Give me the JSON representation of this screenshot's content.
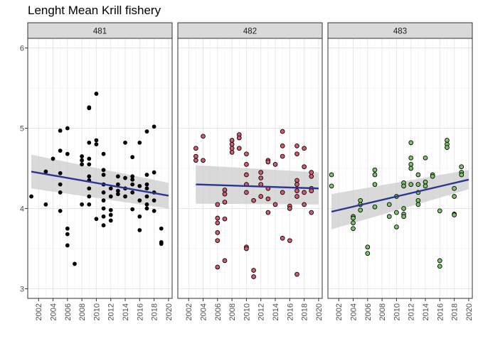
{
  "chart_data": {
    "type": "scatter",
    "title": "Lenght Mean Krill fishery",
    "xlabel": "",
    "ylabel": "",
    "xlim": [
      2000.5,
      2020.5
    ],
    "ylim": [
      2.88,
      6.12
    ],
    "x_ticks": [
      2002,
      2004,
      2006,
      2008,
      2010,
      2012,
      2014,
      2016,
      2018,
      2020
    ],
    "y_ticks": [
      3,
      4,
      5,
      6
    ],
    "grid": true,
    "smooth_color": "#283593",
    "ribbon_color": "#cccccc",
    "panels": [
      {
        "label": "481",
        "point_color": "#000000",
        "trend": {
          "x": [
            2001,
            2020
          ],
          "y": [
            4.46,
            4.16
          ],
          "band_halfwidth": [
            0.21,
            0.16
          ]
        },
        "points": [
          [
            2001,
            4.15
          ],
          [
            2003,
            4.46
          ],
          [
            2003,
            4.05
          ],
          [
            2004,
            4.62
          ],
          [
            2005,
            4.97
          ],
          [
            2005,
            4.72
          ],
          [
            2005,
            4.44
          ],
          [
            2005,
            4.3
          ],
          [
            2005,
            4.2
          ],
          [
            2005,
            3.97
          ],
          [
            2006,
            5.0
          ],
          [
            2006,
            4.68
          ],
          [
            2006,
            3.75
          ],
          [
            2006,
            3.68
          ],
          [
            2006,
            3.54
          ],
          [
            2007,
            3.31
          ],
          [
            2008,
            4.65
          ],
          [
            2008,
            4.6
          ],
          [
            2008,
            4.55
          ],
          [
            2008,
            4.05
          ],
          [
            2009,
            5.26
          ],
          [
            2009,
            5.25
          ],
          [
            2009,
            4.82
          ],
          [
            2009,
            4.62
          ],
          [
            2009,
            4.55
          ],
          [
            2009,
            4.4
          ],
          [
            2009,
            4.35
          ],
          [
            2009,
            4.25
          ],
          [
            2009,
            4.15
          ],
          [
            2009,
            4.05
          ],
          [
            2010,
            5.43
          ],
          [
            2010,
            4.85
          ],
          [
            2010,
            4.8
          ],
          [
            2010,
            3.87
          ],
          [
            2011,
            4.68
          ],
          [
            2011,
            4.48
          ],
          [
            2011,
            4.42
          ],
          [
            2011,
            4.3
          ],
          [
            2011,
            4.2
          ],
          [
            2011,
            4.1
          ],
          [
            2011,
            4.0
          ],
          [
            2011,
            3.9
          ],
          [
            2011,
            3.79
          ],
          [
            2012,
            4.25
          ],
          [
            2012,
            4.15
          ],
          [
            2012,
            3.98
          ],
          [
            2012,
            3.92
          ],
          [
            2012,
            3.85
          ],
          [
            2013,
            4.4
          ],
          [
            2013,
            4.3
          ],
          [
            2013,
            4.22
          ],
          [
            2013,
            4.18
          ],
          [
            2014,
            4.82
          ],
          [
            2014,
            4.38
          ],
          [
            2014,
            4.25
          ],
          [
            2014,
            4.15
          ],
          [
            2015,
            4.4
          ],
          [
            2015,
            4.36
          ],
          [
            2015,
            4.3
          ],
          [
            2015,
            4.2
          ],
          [
            2015,
            3.99
          ],
          [
            2015,
            4.64
          ],
          [
            2016,
            4.82
          ],
          [
            2016,
            4.28
          ],
          [
            2016,
            4.1
          ],
          [
            2016,
            3.9
          ],
          [
            2016,
            3.73
          ],
          [
            2017,
            4.96
          ],
          [
            2017,
            4.42
          ],
          [
            2017,
            4.3
          ],
          [
            2017,
            4.25
          ],
          [
            2017,
            4.15
          ],
          [
            2017,
            4.05
          ],
          [
            2017,
            4.0
          ],
          [
            2018,
            5.02
          ],
          [
            2018,
            4.45
          ],
          [
            2018,
            4.2
          ],
          [
            2018,
            4.1
          ],
          [
            2018,
            3.97
          ],
          [
            2019,
            3.75
          ],
          [
            2019,
            3.58
          ],
          [
            2019,
            3.56
          ]
        ]
      },
      {
        "label": "482",
        "point_color": "#d45a6e",
        "trend": {
          "x": [
            2003,
            2020
          ],
          "y": [
            4.3,
            4.25
          ],
          "band_halfwidth": [
            0.24,
            0.2
          ]
        },
        "points": [
          [
            2003,
            4.75
          ],
          [
            2003,
            4.65
          ],
          [
            2003,
            4.6
          ],
          [
            2004,
            4.9
          ],
          [
            2004,
            4.6
          ],
          [
            2006,
            4.05
          ],
          [
            2006,
            3.88
          ],
          [
            2006,
            3.82
          ],
          [
            2006,
            3.7
          ],
          [
            2006,
            3.6
          ],
          [
            2006,
            3.27
          ],
          [
            2007,
            4.23
          ],
          [
            2007,
            4.18
          ],
          [
            2007,
            4.08
          ],
          [
            2007,
            3.87
          ],
          [
            2007,
            3.35
          ],
          [
            2008,
            4.85
          ],
          [
            2008,
            4.8
          ],
          [
            2008,
            4.75
          ],
          [
            2008,
            4.7
          ],
          [
            2009,
            4.92
          ],
          [
            2009,
            4.88
          ],
          [
            2009,
            4.75
          ],
          [
            2010,
            4.68
          ],
          [
            2010,
            4.55
          ],
          [
            2010,
            4.42
          ],
          [
            2010,
            4.3
          ],
          [
            2010,
            4.2
          ],
          [
            2010,
            3.52
          ],
          [
            2010,
            3.5
          ],
          [
            2011,
            4.1
          ],
          [
            2011,
            3.23
          ],
          [
            2011,
            3.15
          ],
          [
            2012,
            4.45
          ],
          [
            2012,
            4.38
          ],
          [
            2012,
            4.3
          ],
          [
            2012,
            4.15
          ],
          [
            2013,
            4.6
          ],
          [
            2013,
            4.58
          ],
          [
            2013,
            4.25
          ],
          [
            2013,
            4.12
          ],
          [
            2013,
            3.95
          ],
          [
            2014,
            4.55
          ],
          [
            2014,
            4.05
          ],
          [
            2015,
            4.96
          ],
          [
            2015,
            4.78
          ],
          [
            2015,
            4.65
          ],
          [
            2015,
            4.2
          ],
          [
            2015,
            3.63
          ],
          [
            2016,
            4.03
          ],
          [
            2016,
            4.0
          ],
          [
            2016,
            3.6
          ],
          [
            2017,
            4.78
          ],
          [
            2017,
            4.68
          ],
          [
            2017,
            4.35
          ],
          [
            2017,
            4.3
          ],
          [
            2017,
            4.22
          ],
          [
            2017,
            4.15
          ],
          [
            2017,
            3.18
          ],
          [
            2018,
            4.75
          ],
          [
            2018,
            4.52
          ],
          [
            2018,
            4.2
          ],
          [
            2018,
            4.05
          ],
          [
            2019,
            4.45
          ],
          [
            2019,
            4.4
          ],
          [
            2019,
            4.25
          ],
          [
            2019,
            4.22
          ],
          [
            2019,
            3.95
          ]
        ]
      },
      {
        "label": "483",
        "point_color": "#7cc46a",
        "trend": {
          "x": [
            2001,
            2020
          ],
          "y": [
            3.96,
            4.36
          ],
          "band_halfwidth": [
            0.22,
            0.12
          ]
        },
        "points": [
          [
            2001,
            4.42
          ],
          [
            2001,
            4.28
          ],
          [
            2004,
            3.9
          ],
          [
            2004,
            3.88
          ],
          [
            2004,
            3.82
          ],
          [
            2004,
            3.75
          ],
          [
            2005,
            4.1
          ],
          [
            2005,
            4.05
          ],
          [
            2005,
            3.98
          ],
          [
            2006,
            3.52
          ],
          [
            2006,
            3.44
          ],
          [
            2007,
            4.48
          ],
          [
            2007,
            4.42
          ],
          [
            2007,
            4.3
          ],
          [
            2007,
            4.02
          ],
          [
            2009,
            4.05
          ],
          [
            2009,
            3.9
          ],
          [
            2010,
            4.15
          ],
          [
            2010,
            3.95
          ],
          [
            2010,
            3.77
          ],
          [
            2011,
            4.32
          ],
          [
            2011,
            4.28
          ],
          [
            2011,
            4.0
          ],
          [
            2011,
            3.93
          ],
          [
            2011,
            3.9
          ],
          [
            2012,
            4.82
          ],
          [
            2012,
            4.63
          ],
          [
            2012,
            4.55
          ],
          [
            2012,
            4.5
          ],
          [
            2012,
            4.3
          ],
          [
            2013,
            4.42
          ],
          [
            2013,
            4.3
          ],
          [
            2013,
            4.2
          ],
          [
            2013,
            4.1
          ],
          [
            2013,
            4.05
          ],
          [
            2014,
            4.63
          ],
          [
            2014,
            4.33
          ],
          [
            2014,
            4.28
          ],
          [
            2015,
            4.42
          ],
          [
            2015,
            4.4
          ],
          [
            2016,
            3.97
          ],
          [
            2016,
            3.35
          ],
          [
            2016,
            3.28
          ],
          [
            2017,
            4.85
          ],
          [
            2017,
            4.8
          ],
          [
            2017,
            4.76
          ],
          [
            2018,
            4.25
          ],
          [
            2018,
            4.15
          ],
          [
            2018,
            3.93
          ],
          [
            2018,
            3.92
          ],
          [
            2019,
            4.52
          ],
          [
            2019,
            4.45
          ],
          [
            2019,
            4.42
          ]
        ]
      }
    ]
  }
}
